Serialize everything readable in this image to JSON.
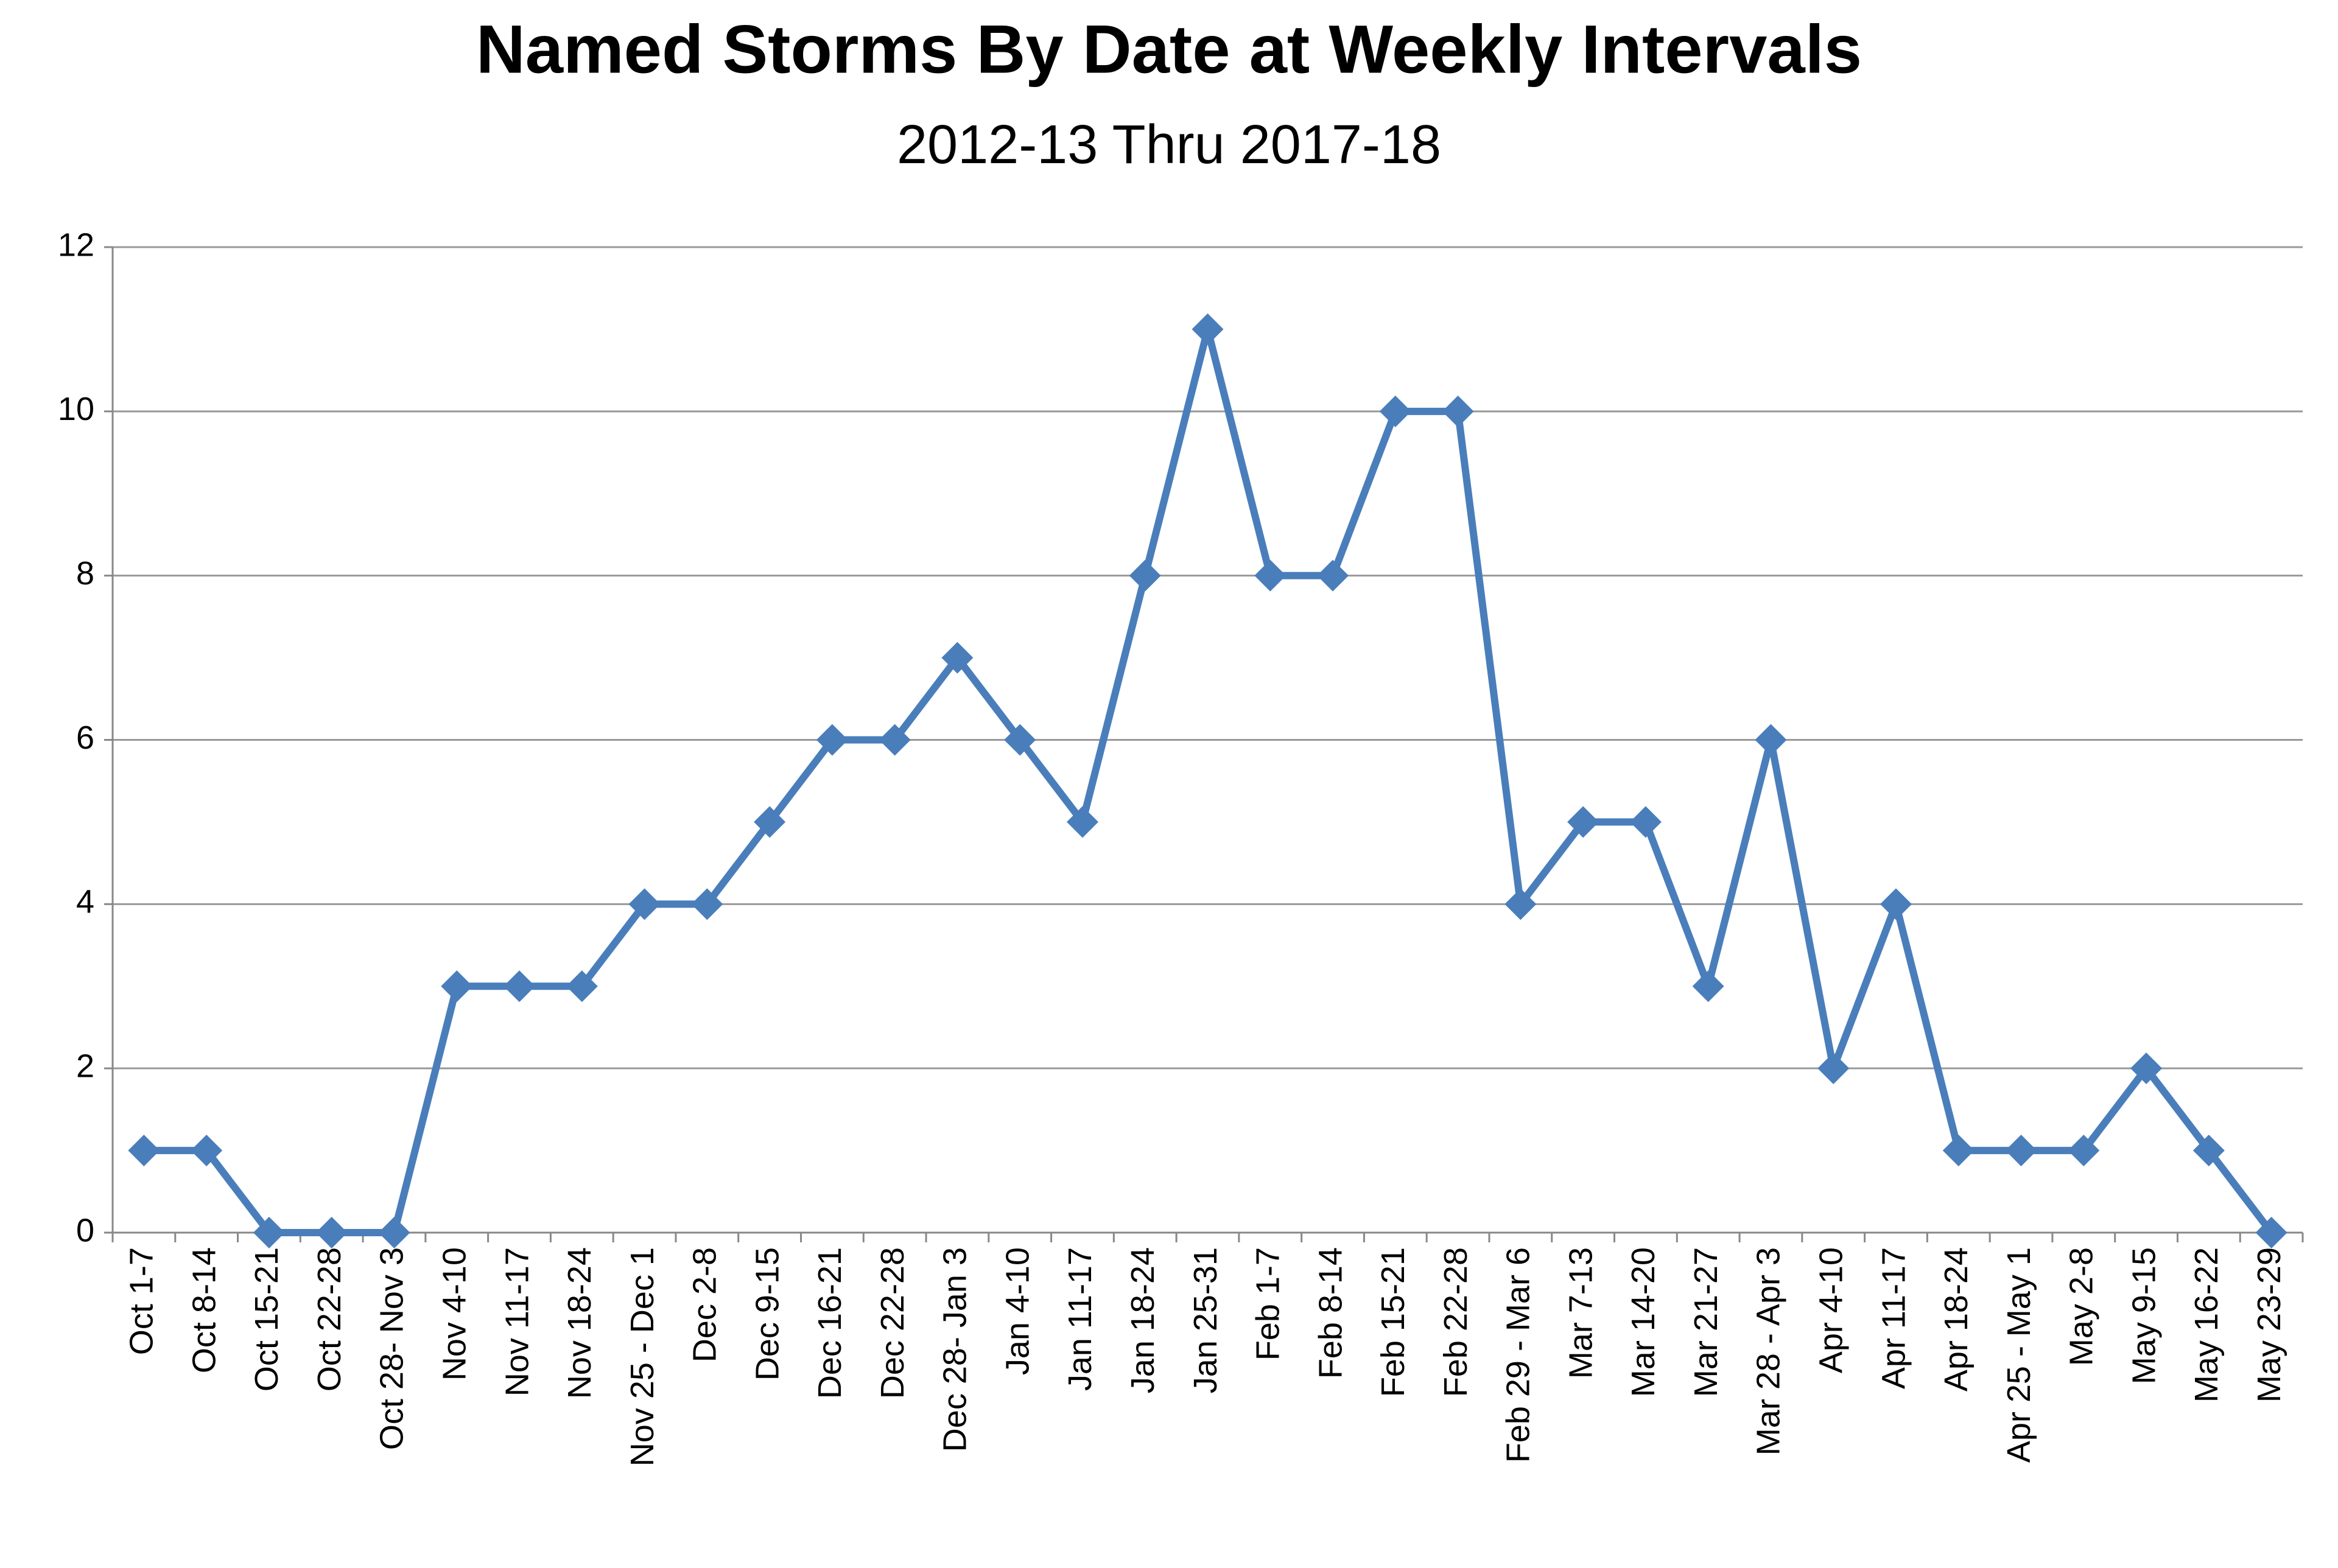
{
  "chart_data": {
    "type": "line",
    "title": "Named Storms By Date at Weekly Intervals",
    "subtitle": "2012-13 Thru 2017-18",
    "categories": [
      "Oct 1-7",
      "Oct 8-14",
      "Oct 15-21",
      "Oct 22-28",
      "Oct 28- Nov 3",
      "Nov 4-10",
      "Nov 11-17",
      "Nov 18-24",
      "Nov 25 - Dec 1",
      "Dec 2-8",
      "Dec 9-15",
      "Dec 16-21",
      "Dec 22-28",
      "Dec 28- Jan 3",
      "Jan 4-10",
      "Jan 11-17",
      "Jan 18-24",
      "Jan 25-31",
      "Feb 1-7",
      "Feb 8-14",
      "Feb 15-21",
      "Feb 22-28",
      "Feb 29 - Mar 6",
      "Mar 7-13",
      "Mar 14-20",
      "Mar 21-27",
      "Mar 28 - Apr 3",
      "Apr 4-10",
      "Apr 11-17",
      "Apr 18-24",
      "Apr 25 - May 1",
      "May 2-8",
      "May 9-15",
      "May 16-22",
      "May 23-29"
    ],
    "values": [
      1,
      1,
      0,
      0,
      0,
      3,
      3,
      3,
      4,
      4,
      5,
      6,
      6,
      7,
      6,
      5,
      8,
      11,
      8,
      8,
      10,
      10,
      4,
      5,
      5,
      3,
      6,
      2,
      4,
      1,
      1,
      1,
      2,
      1,
      0
    ],
    "color": "#4a7ebb",
    "ylim": [
      0,
      12
    ],
    "yticks": [
      0,
      2,
      4,
      6,
      8,
      10,
      12
    ],
    "grid": true
  }
}
